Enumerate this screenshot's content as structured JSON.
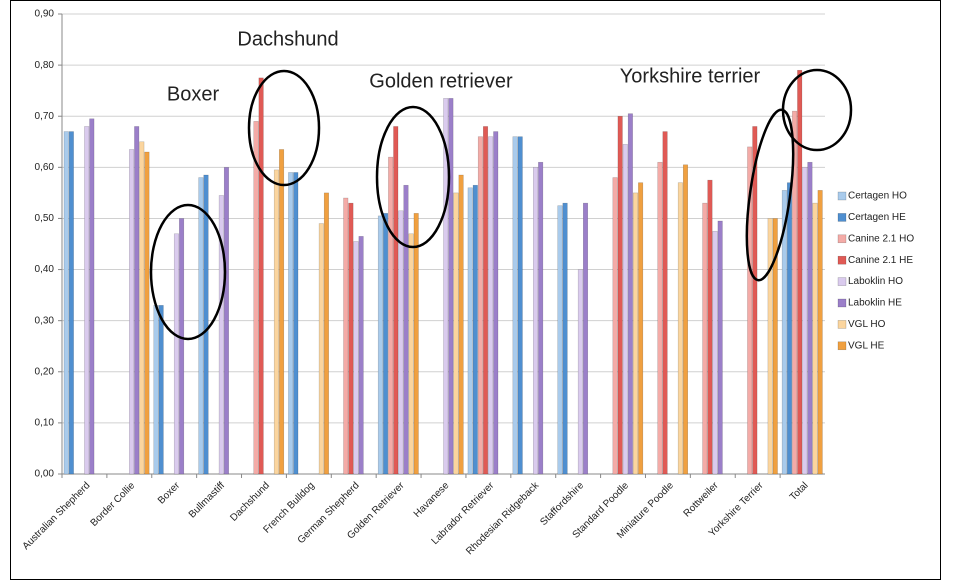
{
  "chart_data": {
    "type": "bar",
    "categories": [
      "Australian Shepherd",
      "Border Collie",
      "Boxer",
      "Bullmastiff",
      "Dachshund",
      "French Bulldog",
      "German Shepherd",
      "Golden Retriever",
      "Havanese",
      "Labrador Retriever",
      "Rhodesian Ridgeback",
      "Staffordshire",
      "Standard Poodle",
      "Miniature Poodle",
      "Rottweiler",
      "Yorkshire Terrier",
      "Total"
    ],
    "series": [
      {
        "name": "Certagen HO",
        "color": "#a9cbec",
        "values": [
          0.67,
          null,
          0.33,
          0.58,
          null,
          0.59,
          null,
          0.505,
          null,
          0.56,
          0.66,
          0.525,
          null,
          null,
          null,
          null,
          0.555
        ]
      },
      {
        "name": "Certagen HE",
        "color": "#4f8fd0",
        "values": [
          0.67,
          null,
          0.33,
          0.585,
          null,
          0.59,
          null,
          0.51,
          null,
          0.565,
          0.66,
          0.53,
          null,
          null,
          null,
          null,
          0.57
        ]
      },
      {
        "name": "Canine 2.1 HO",
        "color": "#f4aba7",
        "values": [
          null,
          null,
          null,
          null,
          0.69,
          null,
          0.54,
          0.62,
          null,
          0.66,
          null,
          null,
          0.58,
          0.61,
          0.53,
          0.64,
          0.71
        ]
      },
      {
        "name": "Canine 2.1 HE",
        "color": "#e05a55",
        "values": [
          null,
          null,
          null,
          null,
          0.775,
          null,
          0.53,
          0.68,
          null,
          0.68,
          null,
          null,
          0.7,
          0.67,
          0.575,
          0.68,
          0.79
        ]
      },
      {
        "name": "Laboklin HO",
        "color": "#dacbee",
        "values": [
          0.68,
          0.635,
          0.47,
          0.545,
          null,
          null,
          0.455,
          0.515,
          0.735,
          0.66,
          0.6,
          0.4,
          0.645,
          null,
          0.475,
          null,
          0.6
        ]
      },
      {
        "name": "Laboklin HE",
        "color": "#9b7fc9",
        "values": [
          0.695,
          0.68,
          0.5,
          0.6,
          null,
          null,
          0.465,
          0.565,
          0.735,
          0.67,
          0.61,
          0.53,
          0.705,
          null,
          0.495,
          null,
          0.61
        ]
      },
      {
        "name": "VGL HO",
        "color": "#fbd59e",
        "values": [
          null,
          0.65,
          null,
          null,
          0.595,
          0.49,
          null,
          0.47,
          0.55,
          null,
          null,
          null,
          0.55,
          0.57,
          null,
          0.5,
          0.53
        ]
      },
      {
        "name": "VGL HE",
        "color": "#f0a040",
        "values": [
          null,
          0.63,
          null,
          null,
          0.635,
          0.55,
          null,
          0.51,
          0.585,
          null,
          null,
          null,
          0.57,
          0.605,
          null,
          0.5,
          0.555
        ]
      }
    ],
    "ylim": [
      0,
      0.9
    ],
    "yticks": [
      {
        "value": 0,
        "label": "0,00"
      },
      {
        "value": 0.1,
        "label": "0,10"
      },
      {
        "value": 0.2,
        "label": "0,20"
      },
      {
        "value": 0.3,
        "label": "0,30"
      },
      {
        "value": 0.4,
        "label": "0,40"
      },
      {
        "value": 0.5,
        "label": "0,50"
      },
      {
        "value": 0.6,
        "label": "0,60"
      },
      {
        "value": 0.7,
        "label": "0,70"
      },
      {
        "value": 0.8,
        "label": "0,80"
      },
      {
        "value": 0.9,
        "label": "0,90"
      }
    ],
    "grid": true,
    "legend": "right",
    "annotations": [
      "Dachshund",
      "Boxer",
      "Golden retriever",
      "Yorkshire terrier"
    ]
  }
}
